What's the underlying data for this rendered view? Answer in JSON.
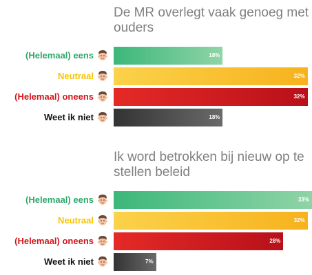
{
  "colors": {
    "eens": "#2ea86a",
    "neutraal": "#f9c400",
    "oneens": "#d2161b",
    "weet_niet": "#3d3d3d",
    "title": "#7f7f7f"
  },
  "chart_data": [
    {
      "type": "bar",
      "orientation": "horizontal",
      "title": "De MR overlegt vaak genoeg met ouders",
      "categories": [
        "(Helemaal) eens",
        "Neutraal",
        "(Helemaal) oneens",
        "Weet ik niet"
      ],
      "values": [
        18,
        32,
        32,
        18
      ],
      "value_labels": [
        "18%",
        "32%",
        "32%",
        "18%"
      ],
      "icon": "face-icon"
    },
    {
      "type": "bar",
      "orientation": "horizontal",
      "title": "Ik word betrokken bij nieuw op te stellen beleid",
      "categories": [
        "(Helemaal) eens",
        "Neutraal",
        "(Helemaal) oneens",
        "Weet ik niet"
      ],
      "values": [
        33,
        32,
        28,
        7
      ],
      "value_labels": [
        "33%",
        "32%",
        "28%",
        "7%"
      ],
      "icon": "face-icon"
    }
  ]
}
